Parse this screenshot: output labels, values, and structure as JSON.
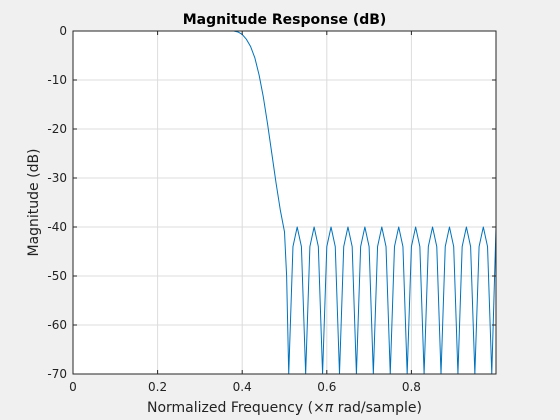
{
  "chart_data": {
    "type": "line",
    "title": "Magnitude Response (dB)",
    "xlabel_prefix": "Normalized Frequency  (",
    "xlabel_symbol": "×π",
    "xlabel_suffix": " rad/sample)",
    "ylabel": "Magnitude (dB)",
    "xlim": [
      0,
      1.0
    ],
    "ylim": [
      -70,
      0
    ],
    "xticks": [
      0,
      0.2,
      0.4,
      0.6,
      0.8
    ],
    "xtick_labels": [
      "0",
      "0.2",
      "0.4",
      "0.6",
      "0.8"
    ],
    "yticks": [
      0,
      -10,
      -20,
      -30,
      -40,
      -50,
      -60,
      -70
    ],
    "ytick_labels": [
      "0",
      "-10",
      "-20",
      "-30",
      "-40",
      "-50",
      "-60",
      "-70"
    ],
    "grid": true,
    "line_color": "#0072BD",
    "series": [
      {
        "x": [
          0,
          0.1,
          0.2,
          0.3,
          0.38,
          0.39,
          0.4,
          0.41,
          0.42,
          0.43,
          0.44,
          0.45,
          0.46,
          0.47,
          0.48,
          0.49,
          0.5,
          0.505,
          0.51,
          0.52,
          0.53,
          0.54,
          0.55,
          0.56,
          0.57,
          0.58,
          0.59,
          0.6,
          0.61,
          0.62,
          0.63,
          0.64,
          0.65,
          0.66,
          0.67,
          0.68,
          0.69,
          0.7,
          0.71,
          0.72,
          0.73,
          0.74,
          0.75,
          0.76,
          0.77,
          0.78,
          0.79,
          0.8,
          0.81,
          0.82,
          0.83,
          0.84,
          0.85,
          0.86,
          0.87,
          0.88,
          0.89,
          0.9,
          0.91,
          0.92,
          0.93,
          0.94,
          0.95,
          0.96,
          0.97,
          0.98,
          0.99,
          1.0
        ],
        "y": [
          0,
          0,
          0,
          0,
          0,
          -0.2,
          -0.7,
          -1.7,
          -3.2,
          -5.5,
          -9,
          -13.5,
          -19,
          -25,
          -31,
          -36.5,
          -41,
          -50,
          -70,
          -44,
          -40,
          -44,
          -70,
          -44,
          -40,
          -44,
          -70,
          -44,
          -40,
          -44,
          -70,
          -44,
          -40,
          -44,
          -70,
          -44,
          -40,
          -44,
          -70,
          -44,
          -40,
          -44,
          -70,
          -44,
          -40,
          -44,
          -70,
          -44,
          -40,
          -44,
          -70,
          -44,
          -40,
          -44,
          -70,
          -44,
          -40,
          -44,
          -70,
          -44,
          -40,
          -44,
          -70,
          -44,
          -40,
          -44,
          -70,
          -40
        ]
      }
    ]
  }
}
